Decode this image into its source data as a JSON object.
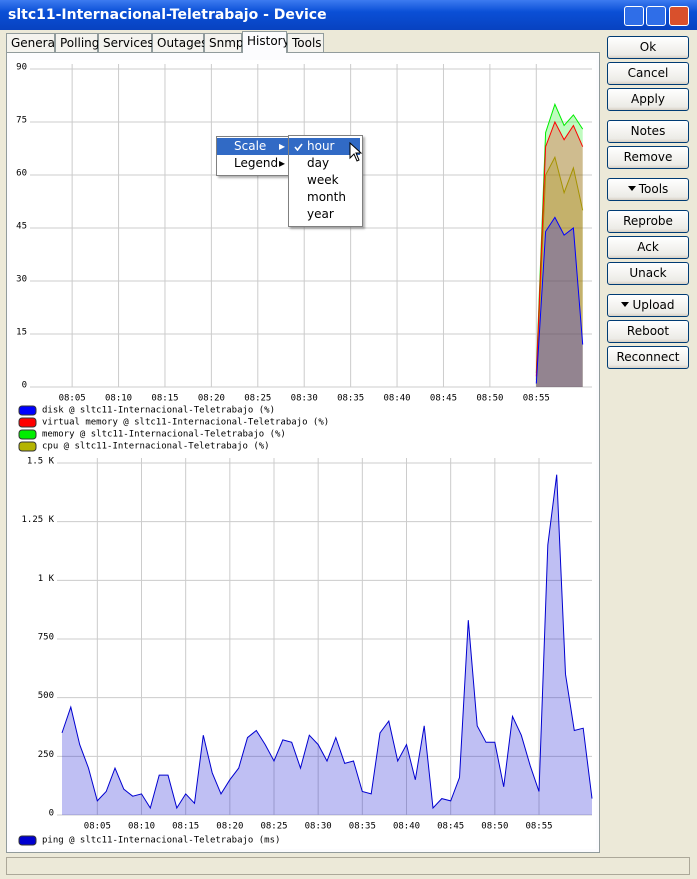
{
  "window": {
    "title": "sltc11-Internacional-Teletrabajo - Device"
  },
  "tabs": [
    "General",
    "Polling",
    "Services",
    "Outages",
    "Snmp",
    "History",
    "Tools"
  ],
  "buttons": [
    "Ok",
    "Cancel",
    "Apply",
    "Notes",
    "Remove",
    "Tools",
    "Reprobe",
    "Ack",
    "Unack",
    "Upload",
    "Reboot",
    "Reconnect"
  ],
  "context_menu": {
    "items": [
      "Scale",
      "Legend"
    ],
    "submenu": [
      "hour",
      "day",
      "week",
      "month",
      "year"
    ]
  },
  "chart_data": [
    {
      "type": "area",
      "x": [
        "08:55",
        "08:56",
        "08:57",
        "08:58",
        "08:59",
        "09:00"
      ],
      "series": [
        {
          "name": "disk @ sltc11-Internacional-Teletrabajo (%)",
          "color": "#0000ff",
          "values": [
            1,
            44,
            48,
            43,
            45,
            12
          ]
        },
        {
          "name": "virtual memory @ sltc11-Internacional-Teletrabajo (%)",
          "color": "#ff0000",
          "values": [
            3,
            68,
            75,
            70,
            74,
            68
          ]
        },
        {
          "name": "memory @ sltc11-Internacional-Teletrabajo (%)",
          "color": "#00ee00",
          "values": [
            4,
            72,
            80,
            74,
            77,
            73
          ]
        },
        {
          "name": "cpu @ sltc11-Internacional-Teletrabajo (%)",
          "color": "#b4b400",
          "values": [
            2,
            60,
            65,
            55,
            62,
            50
          ]
        }
      ],
      "xlim": [
        "08:01",
        "09:01"
      ],
      "xticks": [
        "08:05",
        "08:10",
        "08:15",
        "08:20",
        "08:25",
        "08:30",
        "08:35",
        "08:40",
        "08:45",
        "08:50",
        "08:55"
      ],
      "ylim": [
        0,
        90
      ],
      "yticks": [
        0,
        15,
        30,
        45,
        60,
        75,
        90
      ],
      "grid": true
    },
    {
      "type": "area",
      "x": [
        "08:01",
        "08:02",
        "08:03",
        "08:04",
        "08:05",
        "08:06",
        "08:07",
        "08:08",
        "08:09",
        "08:10",
        "08:11",
        "08:12",
        "08:13",
        "08:14",
        "08:15",
        "08:16",
        "08:17",
        "08:18",
        "08:19",
        "08:20",
        "08:21",
        "08:22",
        "08:23",
        "08:24",
        "08:25",
        "08:26",
        "08:27",
        "08:28",
        "08:29",
        "08:30",
        "08:31",
        "08:32",
        "08:33",
        "08:34",
        "08:35",
        "08:36",
        "08:37",
        "08:38",
        "08:39",
        "08:40",
        "08:41",
        "08:42",
        "08:43",
        "08:44",
        "08:45",
        "08:46",
        "08:47",
        "08:48",
        "08:49",
        "08:50",
        "08:51",
        "08:52",
        "08:53",
        "08:54",
        "08:55",
        "08:56",
        "08:57",
        "08:58",
        "08:59",
        "09:00",
        "09:01"
      ],
      "series": [
        {
          "name": "ping @ sltc11-Internacional-Teletrabajo (ms)",
          "color": "#0000d0",
          "values": [
            350,
            460,
            300,
            200,
            60,
            100,
            200,
            110,
            80,
            90,
            30,
            170,
            170,
            30,
            90,
            50,
            340,
            180,
            90,
            150,
            200,
            330,
            360,
            300,
            230,
            320,
            310,
            200,
            340,
            300,
            230,
            330,
            220,
            230,
            100,
            90,
            350,
            400,
            230,
            300,
            150,
            380,
            30,
            70,
            60,
            160,
            830,
            380,
            310,
            310,
            120,
            420,
            340,
            210,
            100,
            1150,
            1450,
            600,
            360,
            370,
            70
          ]
        }
      ],
      "xlim": [
        "08:01",
        "09:01"
      ],
      "xticks": [
        "08:05",
        "08:10",
        "08:15",
        "08:20",
        "08:25",
        "08:30",
        "08:35",
        "08:40",
        "08:45",
        "08:50",
        "08:55"
      ],
      "ylim": [
        0,
        1500
      ],
      "yticks": [
        0,
        250,
        500,
        750,
        {
          "value": 1000,
          "label": "1 K"
        },
        {
          "value": 1250,
          "label": "1.25 K"
        },
        {
          "value": 1500,
          "label": "1.5 K"
        }
      ],
      "grid": true
    }
  ]
}
